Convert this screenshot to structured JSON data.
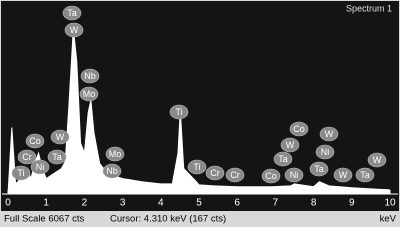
{
  "chart_data": {
    "type": "line",
    "title": "Spectrum 1",
    "x": [
      0,
      0.1,
      0.2,
      0.4,
      0.5,
      0.6,
      0.7,
      0.8,
      0.9,
      1.0,
      1.2,
      1.4,
      1.5,
      1.6,
      1.71,
      1.8,
      1.9,
      2.0,
      2.1,
      2.17,
      2.25,
      2.4,
      2.6,
      3.0,
      3.5,
      4.0,
      4.3,
      4.45,
      4.51,
      4.6,
      4.93,
      5.0,
      5.4,
      6.0,
      6.9,
      7.4,
      7.5,
      8.0,
      8.15,
      8.4,
      9.0,
      10
    ],
    "values": [
      0,
      2110,
      320,
      580,
      810,
      490,
      970,
      1300,
      810,
      490,
      650,
      810,
      1040,
      2920,
      5260,
      4220,
      1620,
      1300,
      2600,
      2980,
      1950,
      970,
      650,
      490,
      390,
      320,
      320,
      1300,
      2660,
      810,
      390,
      290,
      260,
      230,
      230,
      260,
      320,
      230,
      390,
      260,
      200,
      130
    ],
    "color": "#ffffff",
    "xlim": [
      0,
      10
    ],
    "xticks": [
      0,
      1,
      2,
      3,
      4,
      5,
      6,
      7,
      8,
      9,
      10
    ],
    "ylim": [
      0,
      6067
    ],
    "x_label": "keV",
    "full_scale": "Full Scale 6067 cts",
    "cursor": "Cursor: 4.310 keV (167 cts)",
    "annotations": [
      "Ta",
      "W",
      "Nb",
      "Mo",
      "Ti",
      "Mo",
      "Nb",
      "Co",
      "W",
      "Cr",
      "Ta",
      "Ni",
      "Ti",
      "Ti",
      "Cr",
      "Cr",
      "Co",
      "Ta",
      "W",
      "Co",
      "W",
      "Ni",
      "Ta",
      "Ni",
      "W",
      "Ta",
      "W"
    ]
  }
}
